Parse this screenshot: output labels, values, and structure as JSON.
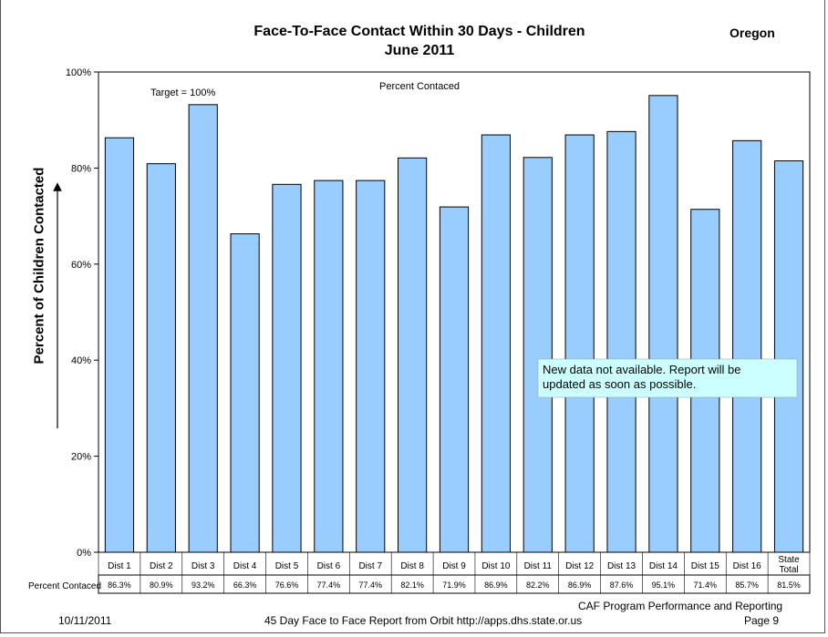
{
  "header": {
    "title_line1": "Face-To-Face Contact Within 30 Days - Children",
    "title_line2": "June 2011",
    "state": "Oregon"
  },
  "chart_data": {
    "type": "bar",
    "ylabel": "Percent of Children Contacted",
    "ylim": [
      0,
      100
    ],
    "yticks": [
      "0%",
      "20%",
      "40%",
      "60%",
      "80%",
      "100%"
    ],
    "grid": false,
    "categories": [
      "Dist 1",
      "Dist 2",
      "Dist 3",
      "Dist 4",
      "Dist 5",
      "Dist 6",
      "Dist 7",
      "Dist 8",
      "Dist 9",
      "Dist 10",
      "Dist 11",
      "Dist 12",
      "Dist 13",
      "Dist 14",
      "Dist 15",
      "Dist 16",
      "State Total"
    ],
    "series": [
      {
        "name": "Percent Contaced",
        "values": [
          86.3,
          80.9,
          93.2,
          66.3,
          76.6,
          77.4,
          77.4,
          82.1,
          71.9,
          86.9,
          82.2,
          86.9,
          87.6,
          95.1,
          71.4,
          85.7,
          81.5
        ],
        "labels": [
          "86.3%",
          "80.9%",
          "93.2%",
          "66.3%",
          "76.6%",
          "77.4%",
          "77.4%",
          "82.1%",
          "71.9%",
          "86.9%",
          "82.2%",
          "86.9%",
          "87.6%",
          "95.1%",
          "71.4%",
          "85.7%",
          "81.5%"
        ],
        "color": "#99ccff"
      }
    ],
    "annotations": {
      "target": "Target = 100%",
      "series_title": "Percent Contaced",
      "notice": [
        "New data not available. Report will be",
        "updated as soon as possible."
      ]
    },
    "table_row_label": "Percent Contaced"
  },
  "footer": {
    "date": "10/11/2011",
    "source": "45 Day Face to Face Report from Orbit  http://apps.dhs.state.or.us",
    "dept": "CAF Program Performance  and Reporting",
    "page": "Page 9"
  }
}
